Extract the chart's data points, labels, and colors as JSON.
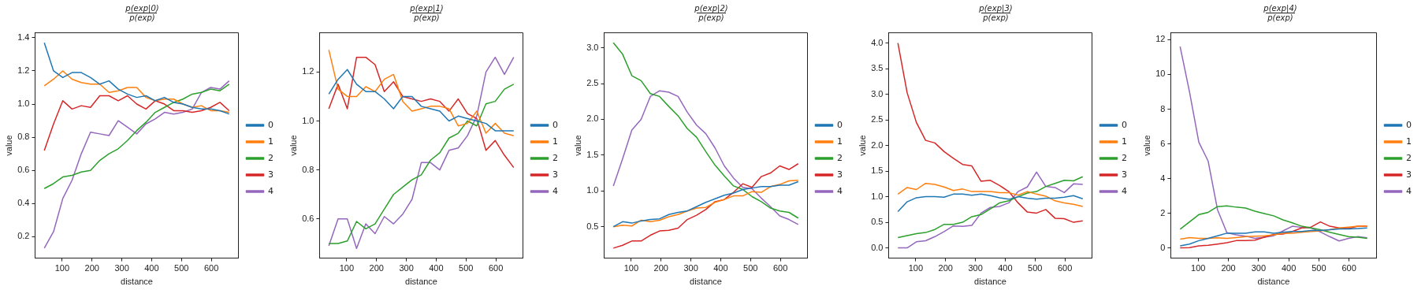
{
  "chart_data": [
    {
      "type": "line",
      "title": "p(exp|0)",
      "subtitle": "p(exp)",
      "xlabel": "distance",
      "ylabel": "value",
      "x": [
        40,
        71,
        102,
        133,
        164,
        195,
        226,
        257,
        288,
        319,
        350,
        381,
        412,
        443,
        474,
        505,
        536,
        567,
        598,
        629,
        660
      ],
      "xlim": [
        9,
        691
      ],
      "xticks": [
        100,
        200,
        300,
        400,
        500,
        600
      ],
      "ylim": [
        0.07,
        1.43
      ],
      "yticks": [
        0.2,
        0.4,
        0.6,
        0.8,
        {
          "value": 1,
          "label": "1.0"
        },
        1.2,
        1.4
      ],
      "grid": false,
      "legend": "right",
      "marker": "none",
      "line_style": "solid",
      "series": [
        {
          "name": "0",
          "color": "#1f77b4",
          "values": [
            1.37,
            1.2,
            1.16,
            1.19,
            1.19,
            1.16,
            1.12,
            1.14,
            1.09,
            1.06,
            1.04,
            1.05,
            1.02,
            1.04,
            1.01,
            1.0,
            0.98,
            0.97,
            0.97,
            0.96,
            0.94
          ]
        },
        {
          "name": "1",
          "color": "#ff7f0e",
          "values": [
            1.11,
            1.15,
            1.2,
            1.15,
            1.13,
            1.12,
            1.12,
            1.07,
            1.08,
            1.1,
            1.1,
            1.04,
            1.02,
            1.03,
            1.03,
            1.0,
            0.98,
            0.99,
            0.96,
            0.96,
            0.95
          ]
        },
        {
          "name": "2",
          "color": "#2ca02c",
          "values": [
            0.49,
            0.52,
            0.56,
            0.57,
            0.59,
            0.6,
            0.66,
            0.7,
            0.73,
            0.78,
            0.84,
            0.89,
            0.95,
            0.98,
            1.01,
            1.03,
            1.06,
            1.07,
            1.09,
            1.08,
            1.12
          ]
        },
        {
          "name": "3",
          "color": "#d62728",
          "values": [
            0.72,
            0.88,
            1.02,
            0.97,
            0.99,
            0.98,
            1.05,
            1.05,
            1.02,
            1.05,
            1.0,
            0.97,
            1.02,
            1.0,
            0.96,
            0.96,
            0.95,
            0.96,
            0.98,
            1.01,
            0.96
          ]
        },
        {
          "name": "4",
          "color": "#9467bd",
          "values": [
            0.13,
            0.23,
            0.43,
            0.54,
            0.7,
            0.83,
            0.82,
            0.81,
            0.9,
            0.86,
            0.82,
            0.88,
            0.91,
            0.95,
            0.94,
            0.95,
            0.97,
            1.07,
            1.1,
            1.09,
            1.14
          ]
        }
      ]
    },
    {
      "type": "line",
      "title": "p(exp|1)",
      "subtitle": "p(exp)",
      "xlabel": "distance",
      "ylabel": "value",
      "x": [
        40,
        71,
        102,
        133,
        164,
        195,
        226,
        257,
        288,
        319,
        350,
        381,
        412,
        443,
        474,
        505,
        536,
        567,
        598,
        629,
        660
      ],
      "xlim": [
        9,
        691
      ],
      "xticks": [
        100,
        200,
        300,
        400,
        500,
        600
      ],
      "ylim": [
        0.44,
        1.36
      ],
      "yticks": [
        0.6,
        0.8,
        {
          "value": 1,
          "label": "1.0"
        },
        1.2
      ],
      "grid": false,
      "legend": "right",
      "marker": "none",
      "line_style": "solid",
      "series": [
        {
          "name": "0",
          "color": "#1f77b4",
          "values": [
            1.11,
            1.17,
            1.21,
            1.15,
            1.12,
            1.12,
            1.09,
            1.05,
            1.1,
            1.1,
            1.06,
            1.05,
            1.04,
            1.0,
            1.02,
            1.01,
            1.0,
            0.99,
            0.96,
            0.96,
            0.96
          ]
        },
        {
          "name": "1",
          "color": "#ff7f0e",
          "values": [
            1.29,
            1.13,
            1.1,
            1.1,
            1.14,
            1.12,
            1.17,
            1.19,
            1.08,
            1.04,
            1.05,
            1.06,
            1.06,
            1.05,
            0.98,
            0.99,
            1.04,
            0.95,
            0.99,
            0.95,
            0.94
          ]
        },
        {
          "name": "2",
          "color": "#2ca02c",
          "values": [
            0.5,
            0.5,
            0.51,
            0.59,
            0.56,
            0.58,
            0.64,
            0.7,
            0.73,
            0.76,
            0.78,
            0.84,
            0.87,
            0.93,
            0.95,
            1.0,
            0.98,
            1.07,
            1.08,
            1.13,
            1.15
          ]
        },
        {
          "name": "3",
          "color": "#d62728",
          "values": [
            1.05,
            1.15,
            1.05,
            1.26,
            1.26,
            1.23,
            1.12,
            1.16,
            1.1,
            1.09,
            1.08,
            1.09,
            1.08,
            1.04,
            1.09,
            1.03,
            1.01,
            0.88,
            0.92,
            0.86,
            0.81
          ]
        },
        {
          "name": "4",
          "color": "#9467bd",
          "values": [
            0.49,
            0.6,
            0.6,
            0.48,
            0.58,
            0.54,
            0.61,
            0.58,
            0.62,
            0.68,
            0.83,
            0.83,
            0.8,
            0.88,
            0.89,
            0.94,
            1.02,
            1.2,
            1.26,
            1.19,
            1.26
          ]
        }
      ]
    },
    {
      "type": "line",
      "title": "p(exp|2)",
      "subtitle": "p(exp)",
      "xlabel": "distance",
      "ylabel": "value",
      "x": [
        40,
        71,
        102,
        133,
        164,
        195,
        226,
        257,
        288,
        319,
        350,
        381,
        412,
        443,
        474,
        505,
        536,
        567,
        598,
        629,
        660
      ],
      "xlim": [
        9,
        691
      ],
      "xticks": [
        100,
        200,
        300,
        400,
        500,
        600
      ],
      "ylim": [
        0.06,
        3.21
      ],
      "yticks": [
        0.5,
        {
          "value": 1,
          "label": "1.0"
        },
        1.5,
        {
          "value": 2,
          "label": "2.0"
        },
        2.5,
        {
          "value": 3,
          "label": "3.0"
        }
      ],
      "grid": false,
      "legend": "right",
      "marker": "none",
      "line_style": "solid",
      "series": [
        {
          "name": "0",
          "color": "#1f77b4",
          "values": [
            0.5,
            0.57,
            0.55,
            0.58,
            0.6,
            0.61,
            0.67,
            0.7,
            0.72,
            0.78,
            0.84,
            0.89,
            0.94,
            0.97,
            1.02,
            1.04,
            1.06,
            1.06,
            1.08,
            1.08,
            1.13
          ]
        },
        {
          "name": "1",
          "color": "#ff7f0e",
          "values": [
            0.5,
            0.52,
            0.51,
            0.59,
            0.57,
            0.59,
            0.64,
            0.67,
            0.72,
            0.76,
            0.77,
            0.84,
            0.88,
            0.93,
            0.93,
            0.99,
            0.98,
            1.06,
            1.09,
            1.14,
            1.15
          ]
        },
        {
          "name": "2",
          "color": "#2ca02c",
          "values": [
            3.07,
            2.91,
            2.61,
            2.54,
            2.36,
            2.32,
            2.18,
            2.05,
            1.87,
            1.75,
            1.55,
            1.36,
            1.21,
            1.07,
            1.02,
            0.92,
            0.85,
            0.76,
            0.72,
            0.7,
            0.62
          ]
        },
        {
          "name": "3",
          "color": "#d62728",
          "values": [
            0.2,
            0.24,
            0.3,
            0.3,
            0.38,
            0.44,
            0.45,
            0.48,
            0.6,
            0.66,
            0.74,
            0.85,
            0.88,
            0.98,
            1.1,
            1.05,
            1.2,
            1.25,
            1.35,
            1.3,
            1.38
          ]
        },
        {
          "name": "4",
          "color": "#9467bd",
          "values": [
            1.07,
            1.45,
            1.85,
            2.0,
            2.32,
            2.4,
            2.38,
            2.32,
            2.1,
            1.92,
            1.8,
            1.6,
            1.35,
            1.18,
            1.05,
            1.03,
            0.9,
            0.78,
            0.65,
            0.6,
            0.53
          ]
        }
      ]
    },
    {
      "type": "line",
      "title": "p(exp|3)",
      "subtitle": "p(exp)",
      "xlabel": "distance",
      "ylabel": "value",
      "x": [
        40,
        71,
        102,
        133,
        164,
        195,
        226,
        257,
        288,
        319,
        350,
        381,
        412,
        443,
        474,
        505,
        536,
        567,
        598,
        629,
        660
      ],
      "xlim": [
        9,
        691
      ],
      "xticks": [
        100,
        200,
        300,
        400,
        500,
        600
      ],
      "ylim": [
        -0.2,
        4.2
      ],
      "yticks": [
        {
          "value": 0,
          "label": "0.0"
        },
        0.5,
        {
          "value": 1,
          "label": "1.0"
        },
        1.5,
        {
          "value": 2,
          "label": "2.0"
        },
        2.5,
        {
          "value": 3,
          "label": "3.0"
        },
        3.5,
        {
          "value": 4,
          "label": "4.0"
        }
      ],
      "grid": false,
      "legend": "right",
      "marker": "none",
      "line_style": "solid",
      "series": [
        {
          "name": "0",
          "color": "#1f77b4",
          "values": [
            0.71,
            0.9,
            0.98,
            1.0,
            1.0,
            0.99,
            1.05,
            1.05,
            1.03,
            1.05,
            1.02,
            0.98,
            0.95,
            1.0,
            0.97,
            0.95,
            0.97,
            0.97,
            0.99,
            1.02,
            0.96
          ]
        },
        {
          "name": "1",
          "color": "#ff7f0e",
          "values": [
            1.05,
            1.18,
            1.14,
            1.26,
            1.24,
            1.19,
            1.12,
            1.15,
            1.1,
            1.1,
            1.1,
            1.08,
            1.08,
            1.03,
            1.1,
            1.05,
            1.01,
            0.92,
            0.88,
            0.85,
            0.81
          ]
        },
        {
          "name": "2",
          "color": "#2ca02c",
          "values": [
            0.2,
            0.24,
            0.28,
            0.3,
            0.36,
            0.46,
            0.46,
            0.5,
            0.61,
            0.65,
            0.76,
            0.88,
            0.92,
            1.0,
            1.07,
            1.1,
            1.2,
            1.26,
            1.32,
            1.31,
            1.39
          ]
        },
        {
          "name": "3",
          "color": "#d62728",
          "values": [
            4.0,
            3.03,
            2.45,
            2.1,
            2.05,
            1.88,
            1.75,
            1.63,
            1.6,
            1.3,
            1.32,
            1.22,
            1.1,
            0.88,
            0.7,
            0.68,
            0.75,
            0.58,
            0.57,
            0.5,
            0.53
          ]
        },
        {
          "name": "4",
          "color": "#9467bd",
          "values": [
            0.0,
            0.0,
            0.12,
            0.14,
            0.22,
            0.32,
            0.43,
            0.42,
            0.44,
            0.68,
            0.79,
            0.81,
            0.88,
            1.1,
            1.19,
            1.48,
            1.2,
            1.18,
            1.08,
            1.25,
            1.24
          ]
        }
      ]
    },
    {
      "type": "line",
      "title": "p(exp|4)",
      "subtitle": "p(exp)",
      "xlabel": "distance",
      "ylabel": "value",
      "x": [
        40,
        71,
        102,
        133,
        164,
        195,
        226,
        257,
        288,
        319,
        350,
        381,
        412,
        443,
        474,
        505,
        536,
        567,
        598,
        629,
        660
      ],
      "xlim": [
        9,
        691
      ],
      "xticks": [
        100,
        200,
        300,
        400,
        500,
        600
      ],
      "ylim": [
        -0.59,
        12.4
      ],
      "yticks": [
        0,
        2,
        4,
        6,
        8,
        10,
        12
      ],
      "grid": false,
      "legend": "right",
      "marker": "none",
      "line_style": "solid",
      "series": [
        {
          "name": "0",
          "color": "#1f77b4",
          "values": [
            0.12,
            0.22,
            0.42,
            0.55,
            0.7,
            0.85,
            0.85,
            0.85,
            0.92,
            0.92,
            0.85,
            0.9,
            0.95,
            0.95,
            1.0,
            1.0,
            1.05,
            1.1,
            1.1,
            1.12,
            1.15
          ]
        },
        {
          "name": "1",
          "color": "#ff7f0e",
          "values": [
            0.5,
            0.6,
            0.55,
            0.55,
            0.58,
            0.55,
            0.6,
            0.65,
            0.68,
            0.7,
            0.75,
            0.85,
            0.85,
            0.9,
            0.95,
            0.98,
            1.05,
            1.15,
            1.2,
            1.25,
            1.25
          ]
        },
        {
          "name": "2",
          "color": "#2ca02c",
          "values": [
            1.08,
            1.5,
            1.92,
            2.05,
            2.38,
            2.42,
            2.35,
            2.3,
            2.12,
            1.98,
            1.85,
            1.62,
            1.45,
            1.25,
            1.15,
            1.05,
            0.9,
            0.78,
            0.65,
            0.62,
            0.55
          ]
        },
        {
          "name": "3",
          "color": "#d62728",
          "values": [
            0.0,
            0.02,
            0.12,
            0.15,
            0.22,
            0.3,
            0.42,
            0.42,
            0.45,
            0.62,
            0.78,
            0.8,
            0.95,
            1.15,
            1.2,
            1.5,
            1.25,
            1.15,
            1.12,
            1.25,
            1.25
          ]
        },
        {
          "name": "4",
          "color": "#9467bd",
          "values": [
            11.6,
            9.0,
            6.1,
            5.0,
            2.2,
            0.88,
            0.75,
            0.68,
            0.55,
            0.62,
            0.7,
            0.98,
            1.25,
            1.18,
            1.15,
            0.92,
            0.65,
            0.4,
            0.55,
            0.65,
            0.58
          ]
        }
      ]
    }
  ]
}
